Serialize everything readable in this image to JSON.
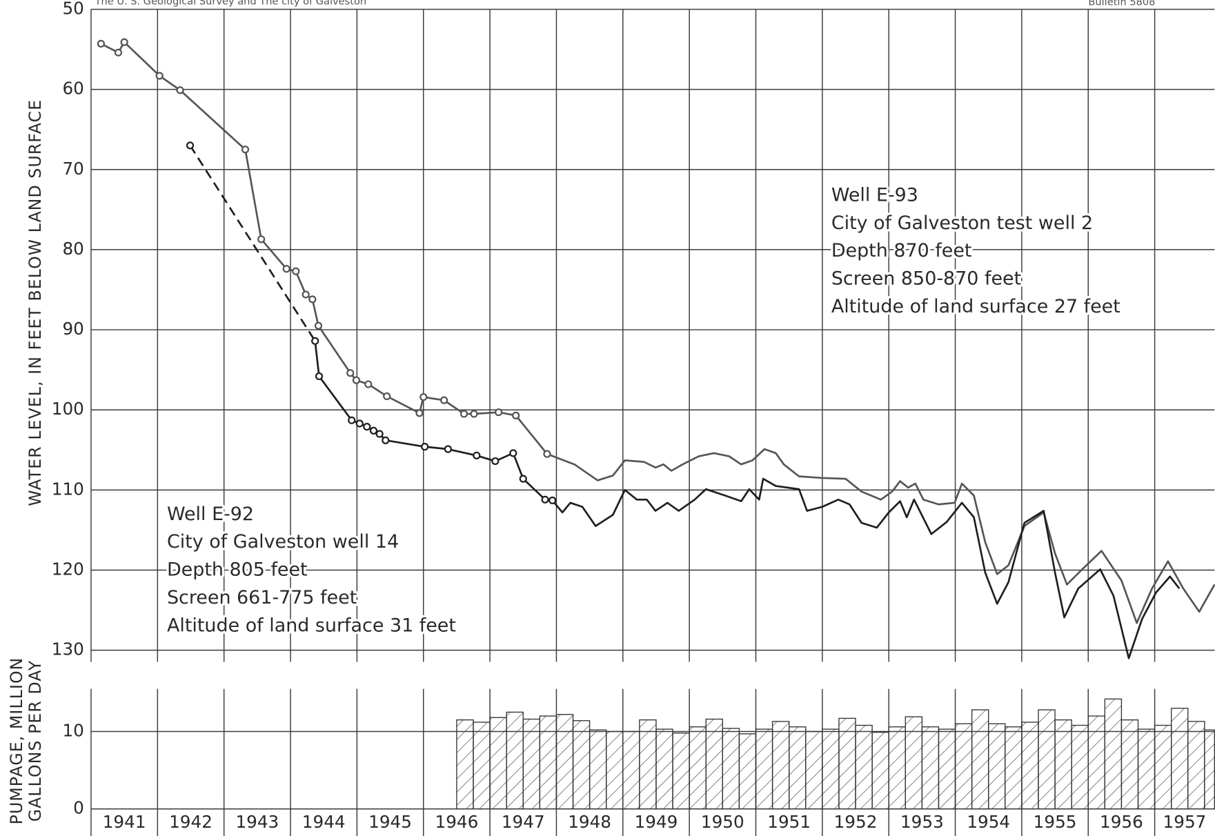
{
  "header": {
    "left": "The U. S. Geological Survey and The city of Galveston",
    "right": "Bulletin 5808"
  },
  "chart_data": [
    {
      "type": "line",
      "y_label": "WATER LEVEL, IN FEET BELOW LAND SURFACE",
      "inverted": true,
      "xlim": [
        1941,
        1957.9
      ],
      "ylim": [
        50,
        130
      ],
      "yticks": [
        50,
        60,
        70,
        80,
        90,
        100,
        110,
        120,
        130
      ],
      "grid": true,
      "series": [
        {
          "name": "Well E-93",
          "color": "#555555",
          "details": [
            "City of Galveston test well 2",
            "Depth 870 feet",
            "Screen 850-870 feet",
            "Altitude of land surface 27 feet"
          ],
          "markers": 24,
          "x": [
            1941.15,
            1941.41,
            1941.5,
            1942.03,
            1942.34,
            1943.32,
            1943.56,
            1943.94,
            1944.08,
            1944.23,
            1944.33,
            1944.42,
            1944.9,
            1944.99,
            1945.17,
            1945.45,
            1945.94,
            1946.0,
            1946.31,
            1946.61,
            1946.76,
            1947.13,
            1947.39,
            1947.86,
            1948.27,
            1948.62,
            1948.85,
            1949.03,
            1949.32,
            1949.49,
            1949.61,
            1949.73,
            1949.9,
            1950.14,
            1950.37,
            1950.6,
            1950.78,
            1950.95,
            1951.13,
            1951.3,
            1951.42,
            1951.65,
            1952.0,
            1952.35,
            1952.59,
            1952.88,
            1953.05,
            1953.17,
            1953.29,
            1953.4,
            1953.52,
            1953.75,
            1953.99,
            1954.1,
            1954.28,
            1954.45,
            1954.63,
            1954.8,
            1955.04,
            1955.33,
            1955.5,
            1955.68,
            1955.91,
            1956.2,
            1956.5,
            1956.73,
            1956.96,
            1957.2,
            1957.43,
            1957.67,
            1957.9
          ],
          "values": [
            54.3,
            55.4,
            54.1,
            58.3,
            60.1,
            67.5,
            78.7,
            82.4,
            82.7,
            85.6,
            86.2,
            89.5,
            95.4,
            96.3,
            96.8,
            98.3,
            100.4,
            98.4,
            98.8,
            100.5,
            100.5,
            100.3,
            100.7,
            105.5,
            106.8,
            108.8,
            108.2,
            106.3,
            106.5,
            107.2,
            106.8,
            107.6,
            106.8,
            105.8,
            105.4,
            105.8,
            106.8,
            106.3,
            104.9,
            105.4,
            106.8,
            108.3,
            108.5,
            108.6,
            110.2,
            111.2,
            110.2,
            108.9,
            109.7,
            109.2,
            111.2,
            111.8,
            111.6,
            109.2,
            110.7,
            116.5,
            120.5,
            119.4,
            114.5,
            112.8,
            117.9,
            121.8,
            119.9,
            117.6,
            121.3,
            126.6,
            122.3,
            118.9,
            122.3,
            125.2,
            121.8
          ]
        },
        {
          "name": "Well E-92",
          "color": "#1e1e1e",
          "details": [
            "City of Galveston well 14",
            "Depth 805 feet",
            "Screen 661-775 feet",
            "Altitude of land surface 31 feet"
          ],
          "markers": 17,
          "dashed_segments": [
            0
          ],
          "x": [
            1942.49,
            1944.37,
            1944.43,
            1944.92,
            1945.04,
            1945.15,
            1945.25,
            1945.34,
            1945.43,
            1946.02,
            1946.37,
            1946.8,
            1947.08,
            1947.35,
            1947.5,
            1947.83,
            1947.94,
            1948.09,
            1948.21,
            1948.39,
            1948.59,
            1948.85,
            1949.03,
            1949.21,
            1949.36,
            1949.49,
            1949.67,
            1949.84,
            1950.08,
            1950.25,
            1950.54,
            1950.78,
            1950.9,
            1951.05,
            1951.11,
            1951.3,
            1951.65,
            1951.77,
            1952.0,
            1952.24,
            1952.41,
            1952.59,
            1952.82,
            1953.0,
            1953.17,
            1953.27,
            1953.38,
            1953.64,
            1953.87,
            1954.1,
            1954.28,
            1954.45,
            1954.63,
            1954.8,
            1955.04,
            1955.33,
            1955.5,
            1955.64,
            1955.85,
            1956.18,
            1956.38,
            1956.61,
            1956.81,
            1957.02,
            1957.23,
            1957.37
          ],
          "values": [
            67.0,
            91.4,
            95.8,
            101.3,
            101.7,
            102.1,
            102.6,
            103.0,
            103.8,
            104.6,
            104.9,
            105.7,
            106.4,
            105.4,
            108.6,
            111.2,
            111.3,
            112.8,
            111.6,
            112.1,
            114.5,
            113.1,
            110.0,
            111.2,
            111.2,
            112.6,
            111.6,
            112.6,
            111.2,
            109.9,
            110.7,
            111.4,
            109.9,
            111.2,
            108.6,
            109.5,
            109.9,
            112.6,
            112.1,
            111.2,
            111.8,
            114.1,
            114.7,
            112.8,
            111.4,
            113.4,
            111.2,
            115.5,
            114.0,
            111.6,
            113.4,
            120.3,
            124.2,
            121.5,
            114.1,
            112.6,
            120.3,
            125.9,
            122.3,
            119.9,
            123.2,
            131.0,
            126.1,
            122.8,
            120.8,
            122.3
          ]
        }
      ]
    },
    {
      "type": "histogram",
      "y_label": [
        "PUMPAGE, MILLION",
        "GALLONS PER DAY"
      ],
      "categories": [
        "1941",
        "1942",
        "1943",
        "1944",
        "1945",
        "1946",
        "1947",
        "1948",
        "1949",
        "1950",
        "1951",
        "1952",
        "1953",
        "1954",
        "1955",
        "1956",
        "1957"
      ],
      "xlim": [
        1941,
        1957.9
      ],
      "ylim": [
        0,
        15.5
      ],
      "yticks": [
        0,
        10
      ],
      "color": "#333333",
      "hatched": true,
      "bins": [
        1946.5,
        1946.75,
        1947.0,
        1947.25,
        1947.5,
        1947.75,
        1948.0,
        1948.25,
        1948.5,
        1948.75,
        1949.0,
        1949.25,
        1949.5,
        1949.75,
        1950.0,
        1950.25,
        1950.5,
        1950.75,
        1951.0,
        1951.25,
        1951.5,
        1951.75,
        1952.0,
        1952.25,
        1952.5,
        1952.75,
        1953.0,
        1953.25,
        1953.5,
        1953.75,
        1954.0,
        1954.25,
        1954.5,
        1954.75,
        1955.0,
        1955.25,
        1955.5,
        1955.75,
        1956.0,
        1956.25,
        1956.5,
        1956.75,
        1957.0,
        1957.25,
        1957.5,
        1957.75,
        1957.9
      ],
      "values": [
        11.5,
        11.2,
        11.8,
        12.5,
        11.6,
        12.0,
        12.2,
        11.4,
        10.2,
        10.0,
        10.0,
        11.5,
        10.3,
        9.8,
        10.6,
        11.6,
        10.4,
        9.7,
        10.3,
        11.3,
        10.6,
        10.0,
        10.3,
        11.7,
        10.8,
        9.9,
        10.6,
        11.9,
        10.6,
        10.3,
        11.0,
        12.8,
        11.0,
        10.6,
        11.2,
        12.8,
        11.5,
        10.8,
        12.0,
        14.2,
        11.5,
        10.3,
        10.8,
        13.0,
        11.3,
        10.2
      ]
    }
  ]
}
